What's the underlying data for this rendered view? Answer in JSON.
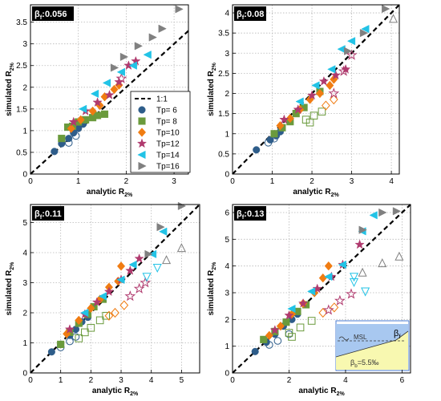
{
  "colors": {
    "Tp= 6": "#2e5d8a",
    "Tp= 8": "#6a9a3c",
    "Tp=10": "#f07c12",
    "Tp=12": "#b03a6e",
    "Tp=14": "#22c3e6",
    "Tp=16": "#808080",
    "one_to_one": "#000000",
    "badge_bg": "#000000",
    "badge_fg": "#ffffff",
    "grid": "#b8b8b8",
    "inset_water": "#a8c8f0",
    "inset_beach": "#f8f8b0",
    "inset_border": "#4a7bd0"
  },
  "legend": {
    "entries": [
      {
        "label": "1:1",
        "marker": "dashed-line"
      },
      {
        "label": "Tp= 6",
        "marker": "circle"
      },
      {
        "label": "Tp= 8",
        "marker": "square"
      },
      {
        "label": "Tp=10",
        "marker": "diamond"
      },
      {
        "label": "Tp=12",
        "marker": "star"
      },
      {
        "label": "Tp=14",
        "marker": "triangle-left"
      },
      {
        "label": "Tp=16",
        "marker": "triangle-right"
      }
    ]
  },
  "inset": {
    "msl_label": "MSL",
    "beta_f_label": "βf",
    "beta_b_label": "βb=5.5‰"
  },
  "chart_data": [
    {
      "type": "scatter",
      "badge": "βf:0.056",
      "xlabel": "analytic R2%",
      "ylabel": "simulated R2%",
      "xlim": [
        0,
        3.3
      ],
      "ylim": [
        0,
        3.9
      ],
      "xticks": [
        0,
        1,
        2,
        3
      ],
      "yticks": [
        0,
        0.5,
        1,
        1.5,
        2,
        2.5,
        3,
        3.5
      ],
      "xtick_labels": [
        "0",
        "1",
        "2",
        "3"
      ],
      "ytick_labels": [
        "0",
        "0.5",
        "1",
        "1.5",
        "2",
        "2.5",
        "3",
        "3.5"
      ],
      "grid": true,
      "series": [
        {
          "name": "Tp= 6",
          "filled": [
            [
              0.5,
              0.52
            ],
            [
              0.65,
              0.7
            ],
            [
              0.8,
              0.82
            ],
            [
              0.9,
              0.95
            ],
            [
              1.0,
              1.05
            ],
            [
              1.1,
              1.15
            ]
          ],
          "open": [
            [
              0.8,
              0.72
            ],
            [
              0.95,
              0.88
            ]
          ]
        },
        {
          "name": "Tp= 8",
          "filled": [
            [
              0.65,
              0.82
            ],
            [
              0.78,
              1.08
            ],
            [
              0.88,
              1.1
            ],
            [
              1.0,
              1.2
            ],
            [
              1.15,
              1.25
            ],
            [
              1.3,
              1.3
            ],
            [
              1.4,
              1.35
            ],
            [
              1.55,
              1.38
            ]
          ],
          "open": []
        },
        {
          "name": "Tp=10",
          "filled": [
            [
              0.85,
              1.05
            ],
            [
              1.05,
              1.25
            ],
            [
              1.3,
              1.45
            ],
            [
              1.45,
              1.58
            ],
            [
              1.55,
              1.78
            ],
            [
              1.75,
              1.95
            ],
            [
              1.85,
              2.05
            ]
          ],
          "open": []
        },
        {
          "name": "Tp=12",
          "filled": [
            [
              0.9,
              1.2
            ],
            [
              1.15,
              1.45
            ],
            [
              1.4,
              1.65
            ],
            [
              1.65,
              1.82
            ],
            [
              1.85,
              2.12
            ],
            [
              2.05,
              2.5
            ],
            [
              2.2,
              2.6
            ]
          ],
          "open": [
            [
              1.9,
              2.2
            ]
          ]
        },
        {
          "name": "Tp=14",
          "filled": [
            [
              1.1,
              1.5
            ],
            [
              1.35,
              1.85
            ],
            [
              1.6,
              2.1
            ],
            [
              1.9,
              2.35
            ],
            [
              2.15,
              2.5
            ],
            [
              2.45,
              2.75
            ]
          ],
          "open": []
        },
        {
          "name": "Tp=16",
          "filled": [
            [
              1.75,
              2.45
            ],
            [
              1.95,
              2.7
            ],
            [
              2.25,
              2.95
            ],
            [
              2.55,
              3.15
            ],
            [
              2.75,
              3.35
            ],
            [
              3.1,
              3.8
            ]
          ],
          "open": []
        }
      ]
    },
    {
      "type": "scatter",
      "badge": "βf:0.08",
      "xlabel": "analytic R2%",
      "ylabel": "simulated R2%",
      "xlim": [
        0,
        4.2
      ],
      "ylim": [
        0,
        4.2
      ],
      "xticks": [
        0,
        1,
        2,
        3,
        4
      ],
      "yticks": [
        0,
        0.5,
        1,
        1.5,
        2,
        2.5,
        3,
        3.5,
        4
      ],
      "xtick_labels": [
        "0",
        "1",
        "2",
        "3",
        "4"
      ],
      "ytick_labels": [
        "0",
        "0.5",
        "1",
        "1.5",
        "2",
        "2.5",
        "3",
        "3.5",
        "4"
      ],
      "grid": true,
      "series": [
        {
          "name": "Tp= 6",
          "filled": [
            [
              0.6,
              0.6
            ],
            [
              0.95,
              0.85
            ],
            [
              1.1,
              0.95
            ],
            [
              1.2,
              1.05
            ]
          ],
          "open": [
            [
              0.9,
              0.78
            ],
            [
              1.05,
              0.88
            ]
          ]
        },
        {
          "name": "Tp= 8",
          "filled": [
            [
              1.05,
              1.0
            ],
            [
              1.25,
              1.15
            ],
            [
              1.45,
              1.3
            ],
            [
              1.6,
              1.5
            ],
            [
              1.8,
              1.65
            ],
            [
              2.2,
              2.05
            ]
          ],
          "open": [
            [
              1.85,
              1.35
            ],
            [
              2.05,
              1.45
            ],
            [
              2.25,
              1.55
            ],
            [
              1.95,
              1.28
            ]
          ]
        },
        {
          "name": "Tp=10",
          "filled": [
            [
              1.2,
              1.2
            ],
            [
              1.45,
              1.38
            ],
            [
              1.7,
              1.6
            ],
            [
              1.95,
              1.85
            ],
            [
              2.2,
              2.0
            ],
            [
              2.45,
              2.2
            ],
            [
              2.55,
              2.35
            ]
          ],
          "open": [
            [
              2.35,
              1.7
            ],
            [
              2.55,
              1.85
            ]
          ]
        },
        {
          "name": "Tp=12",
          "filled": [
            [
              1.3,
              1.35
            ],
            [
              1.65,
              1.6
            ],
            [
              2.0,
              1.95
            ],
            [
              2.3,
              2.3
            ],
            [
              2.6,
              2.45
            ],
            [
              2.85,
              2.6
            ]
          ],
          "open": [
            [
              2.55,
              2.0
            ],
            [
              2.8,
              2.55
            ],
            [
              3.0,
              2.95
            ]
          ]
        },
        {
          "name": "Tp=14",
          "filled": [
            [
              1.7,
              1.8
            ],
            [
              2.1,
              2.2
            ],
            [
              2.5,
              2.6
            ],
            [
              2.75,
              3.1
            ],
            [
              3.0,
              3.3
            ],
            [
              3.35,
              3.6
            ]
          ],
          "open": []
        },
        {
          "name": "Tp=16",
          "filled": [
            [
              2.9,
              3.05
            ],
            [
              3.3,
              3.5
            ],
            [
              3.85,
              4.1
            ]
          ],
          "open": [
            [
              4.05,
              3.85
            ]
          ]
        }
      ]
    },
    {
      "type": "scatter",
      "badge": "βf:0.11",
      "xlabel": "analytic R2%",
      "ylabel": "simulated R2%",
      "xlim": [
        0,
        5.6
      ],
      "ylim": [
        0,
        5.6
      ],
      "xticks": [
        0,
        1,
        2,
        3,
        4,
        5
      ],
      "yticks": [
        0,
        1,
        2,
        3,
        4,
        5
      ],
      "xtick_labels": [
        "0",
        "1",
        "2",
        "3",
        "4",
        "5"
      ],
      "ytick_labels": [
        "0",
        "1",
        "2",
        "3",
        "4",
        "5"
      ],
      "grid": true,
      "series": [
        {
          "name": "Tp= 6",
          "filled": [
            [
              0.7,
              0.7
            ],
            [
              1.0,
              0.95
            ],
            [
              1.3,
              1.25
            ],
            [
              1.5,
              1.45
            ],
            [
              1.7,
              1.7
            ],
            [
              1.9,
              1.85
            ]
          ],
          "open": [
            [
              1.0,
              0.85
            ],
            [
              1.3,
              1.05
            ],
            [
              1.5,
              1.2
            ]
          ]
        },
        {
          "name": "Tp= 8",
          "filled": [
            [
              1.0,
              0.95
            ],
            [
              1.3,
              1.35
            ],
            [
              1.6,
              1.65
            ],
            [
              1.9,
              1.95
            ],
            [
              2.1,
              2.2
            ],
            [
              2.4,
              2.45
            ]
          ],
          "open": [
            [
              1.8,
              1.35
            ],
            [
              2.0,
              1.5
            ],
            [
              2.3,
              1.75
            ],
            [
              2.5,
              1.9
            ],
            [
              1.6,
              1.15
            ]
          ]
        },
        {
          "name": "Tp=10",
          "filled": [
            [
              1.2,
              1.3
            ],
            [
              1.6,
              1.75
            ],
            [
              2.0,
              2.15
            ],
            [
              2.3,
              2.45
            ],
            [
              2.6,
              2.85
            ],
            [
              2.9,
              3.05
            ],
            [
              3.0,
              3.55
            ]
          ],
          "open": [
            [
              2.8,
              2.0
            ],
            [
              3.1,
              2.25
            ],
            [
              2.6,
              1.9
            ]
          ]
        },
        {
          "name": "Tp=12",
          "filled": [
            [
              1.3,
              1.45
            ],
            [
              1.8,
              1.95
            ],
            [
              2.2,
              2.35
            ],
            [
              2.6,
              2.7
            ],
            [
              3.0,
              3.1
            ],
            [
              3.3,
              3.4
            ],
            [
              3.6,
              3.8
            ]
          ],
          "open": [
            [
              3.3,
              2.55
            ],
            [
              3.6,
              2.8
            ],
            [
              3.8,
              3.0
            ]
          ]
        },
        {
          "name": "Tp=14",
          "filled": [
            [
              1.8,
              2.0
            ],
            [
              2.4,
              2.55
            ],
            [
              3.0,
              3.1
            ],
            [
              3.4,
              3.6
            ],
            [
              4.05,
              3.95
            ],
            [
              4.4,
              4.7
            ]
          ],
          "open": [
            [
              3.85,
              3.2
            ],
            [
              4.2,
              3.5
            ]
          ]
        },
        {
          "name": "Tp=16",
          "filled": [
            [
              3.9,
              3.95
            ],
            [
              4.3,
              4.85
            ],
            [
              5.0,
              5.55
            ]
          ],
          "open": [
            [
              4.5,
              3.75
            ],
            [
              5.0,
              4.15
            ]
          ]
        }
      ]
    },
    {
      "type": "scatter",
      "badge": "βf:0.13",
      "xlabel": "analytic R2%",
      "ylabel": "simulated R2%",
      "xlim": [
        0,
        6.3
      ],
      "ylim": [
        0,
        6.3
      ],
      "xticks": [
        0,
        2,
        4,
        6
      ],
      "yticks": [
        0,
        1,
        2,
        3,
        4,
        5,
        6
      ],
      "xtick_labels": [
        "0",
        "2",
        "4",
        "6"
      ],
      "ytick_labels": [
        "0",
        "1",
        "2",
        "3",
        "4",
        "5",
        "6"
      ],
      "grid": true,
      "series": [
        {
          "name": "Tp= 6",
          "filled": [
            [
              0.8,
              0.8
            ],
            [
              1.2,
              1.15
            ],
            [
              1.5,
              1.45
            ],
            [
              1.8,
              1.75
            ],
            [
              2.1,
              2.0
            ],
            [
              2.3,
              2.2
            ]
          ],
          "open": [
            [
              1.3,
              1.05
            ],
            [
              1.6,
              1.2
            ],
            [
              2.0,
              1.45
            ]
          ]
        },
        {
          "name": "Tp= 8",
          "filled": [
            [
              1.1,
              1.25
            ],
            [
              1.5,
              1.55
            ],
            [
              1.9,
              1.9
            ],
            [
              2.3,
              2.3
            ],
            [
              2.6,
              2.55
            ]
          ],
          "open": [
            [
              2.0,
              1.5
            ],
            [
              2.4,
              1.7
            ],
            [
              2.8,
              1.95
            ],
            [
              2.1,
              1.35
            ]
          ]
        },
        {
          "name": "Tp=10",
          "filled": [
            [
              1.3,
              1.4
            ],
            [
              1.7,
              1.75
            ],
            [
              2.1,
              2.2
            ],
            [
              2.5,
              2.6
            ],
            [
              2.9,
              3.0
            ],
            [
              3.2,
              3.55
            ],
            [
              3.4,
              4.0
            ]
          ],
          "open": [
            [
              3.2,
              2.25
            ],
            [
              3.6,
              2.45
            ]
          ]
        },
        {
          "name": "Tp=12",
          "filled": [
            [
              1.5,
              1.6
            ],
            [
              2.0,
              2.15
            ],
            [
              2.5,
              2.6
            ],
            [
              3.0,
              3.15
            ],
            [
              3.5,
              3.6
            ],
            [
              3.9,
              4.05
            ],
            [
              4.5,
              4.8
            ]
          ],
          "open": [
            [
              3.4,
              2.35
            ],
            [
              3.8,
              2.7
            ],
            [
              4.2,
              2.95
            ]
          ]
        },
        {
          "name": "Tp=14",
          "filled": [
            [
              2.1,
              2.4
            ],
            [
              2.8,
              3.05
            ],
            [
              3.4,
              3.6
            ],
            [
              3.9,
              4.05
            ],
            [
              4.6,
              5.3
            ],
            [
              5.0,
              5.9
            ]
          ],
          "open": [
            [
              4.3,
              3.4
            ],
            [
              4.7,
              3.05
            ],
            [
              4.3,
              3.6
            ]
          ]
        },
        {
          "name": "Tp=16",
          "filled": [
            [
              4.6,
              5.35
            ],
            [
              5.3,
              6.0
            ],
            [
              5.8,
              6.05
            ]
          ],
          "open": [
            [
              4.6,
              3.75
            ],
            [
              5.3,
              4.1
            ],
            [
              5.9,
              4.35
            ]
          ]
        }
      ]
    }
  ]
}
